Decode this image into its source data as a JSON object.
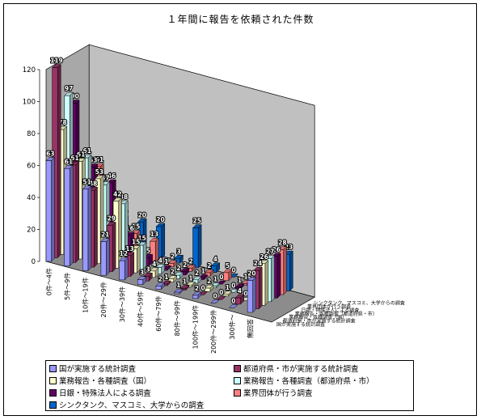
{
  "chart_data": {
    "type": "bar",
    "title": "１年間に報告を依頼された件数",
    "categories": [
      "0件～4件",
      "5件～9件",
      "10件～19件",
      "20件～29件",
      "30件～39件",
      "40件～59件",
      "60件～79件",
      "80件～99件",
      "100件～199件",
      "200件～299件",
      "300件～",
      "無回答"
    ],
    "series": [
      {
        "name": "国が実施する統計調査",
        "color": "#9999ff",
        "values": [
          63,
          61,
          51,
          21,
          12,
          3,
          2,
          1,
          2,
          0,
          0,
          20
        ]
      },
      {
        "name": "都道府県・市が実施する統計調査",
        "color": "#993366",
        "values": [
          119,
          61,
          48,
          29,
          13,
          3,
          1,
          1,
          0,
          0,
          4,
          24
        ]
      },
      {
        "name": "業務報告・各種調査（国）",
        "color": "#ffffcc",
        "values": [
          78,
          61,
          53,
          42,
          15,
          4,
          2,
          1,
          2,
          1,
          0,
          26
        ]
      },
      {
        "name": "業務報告・各種調査（都道府県・市）",
        "color": "#ccffff",
        "values": [
          97,
          61,
          47,
          38,
          15,
          4,
          2,
          2,
          1,
          0,
          2,
          27
        ]
      },
      {
        "name": "日銀・特殊法人による調査",
        "color": "#660066",
        "values": [
          90,
          53,
          46,
          16,
          5,
          1,
          2,
          1,
          0,
          1,
          0,
          26
        ]
      },
      {
        "name": "業界団体が行う調査",
        "color": "#ff8080",
        "values": [
          51,
          51,
          29,
          15,
          13,
          2,
          2,
          2,
          5,
          1,
          11,
          28
        ]
      },
      {
        "name": "シンクタンク、マスコミ、大学からの調査",
        "color": "#0066cc",
        "values": [
          38,
          33,
          19,
          20,
          20,
          3,
          25,
          4,
          0,
          0,
          0,
          23
        ]
      }
    ],
    "ylim": [
      0,
      120
    ],
    "yticks": [
      "0",
      "20",
      "40",
      "60",
      "80",
      "100",
      "120"
    ],
    "grid": false,
    "legend_position": "bottom"
  }
}
